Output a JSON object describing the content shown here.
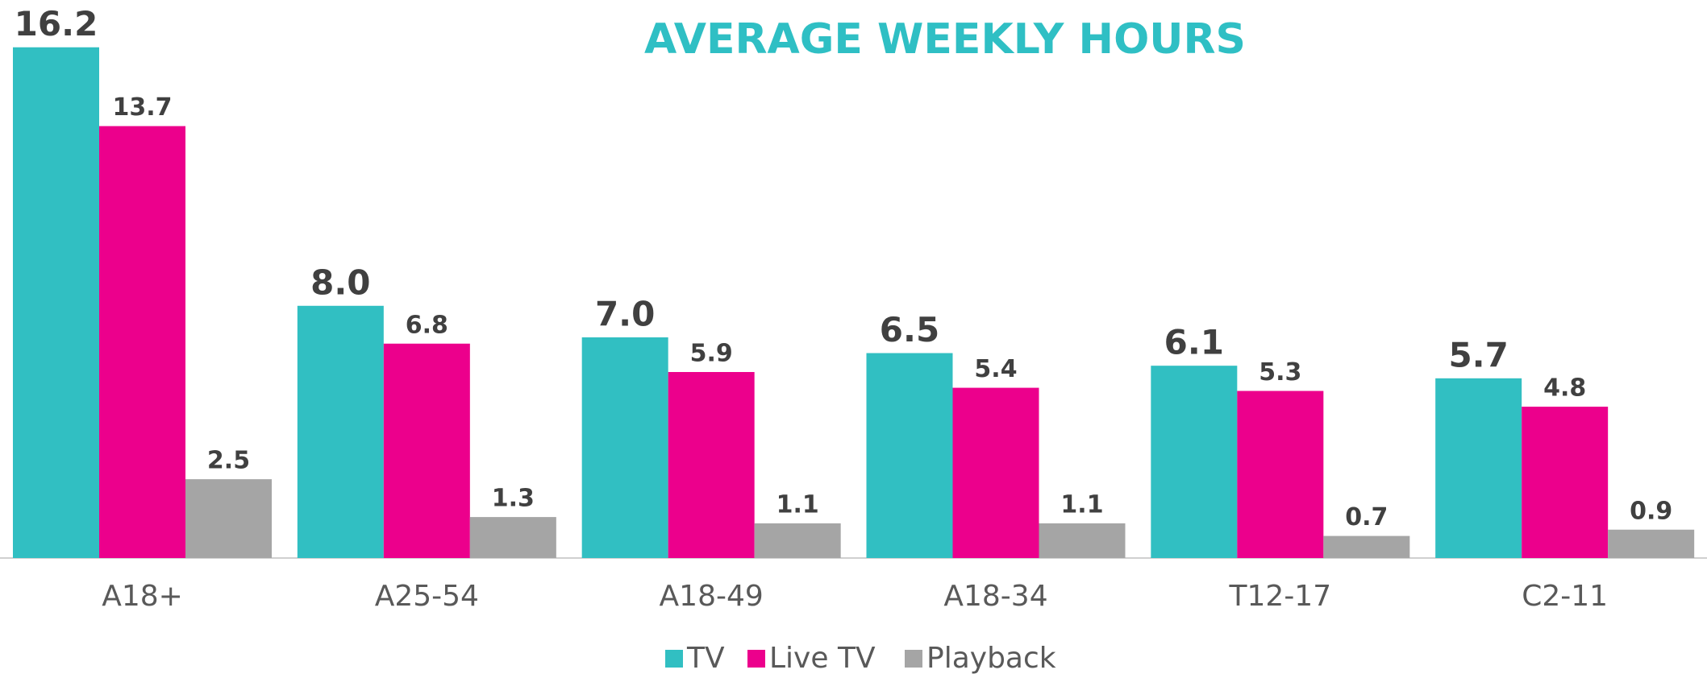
{
  "chart_data": {
    "type": "bar",
    "title": "AVERAGE WEEKLY HOURS",
    "categories": [
      "A18+",
      "A25-54",
      "A18-49",
      "A18-34",
      "T12-17",
      "C2-11"
    ],
    "series": [
      {
        "name": "TV",
        "color": "#31bfc2",
        "values": [
          16.2,
          8.0,
          7.0,
          6.5,
          6.1,
          5.7
        ],
        "value_labels": [
          "16.2",
          "8.0",
          "7.0",
          "6.5",
          "6.1",
          "5.7"
        ]
      },
      {
        "name": "Live TV",
        "color": "#ec008c",
        "values": [
          13.7,
          6.8,
          5.9,
          5.4,
          5.3,
          4.8
        ],
        "value_labels": [
          "13.7",
          "6.8",
          "5.9",
          "5.4",
          "5.3",
          "4.8"
        ]
      },
      {
        "name": "Playback",
        "color": "#a5a5a5",
        "values": [
          2.5,
          1.3,
          1.1,
          1.1,
          0.7,
          0.9
        ],
        "value_labels": [
          "2.5",
          "1.3",
          "1.1",
          "1.1",
          "0.7",
          "0.9"
        ]
      }
    ],
    "ylim": [
      0,
      17.7
    ],
    "legend": "bottom"
  }
}
